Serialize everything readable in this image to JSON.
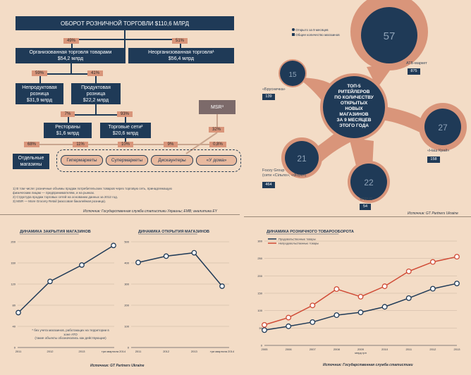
{
  "flow": {
    "top": "ОБОРОТ РОЗНИЧНОЙ ТОРГОВЛИ $110,6 МЛРД",
    "p_food": "49%",
    "p_nonfood": "51%",
    "food": [
      "Организованная торговля товарами",
      "$54,2 млрд"
    ],
    "nonfood": [
      "Неорганизованная торговля¹",
      "$56,4 млрд"
    ],
    "p_nonprod": "59%",
    "p_prod": "41%",
    "nonprod": [
      "Непродуктовая",
      "розница",
      "$31,9 млрд"
    ],
    "prod": [
      "Продуктовая",
      "розница",
      "$22,2 млрд"
    ],
    "msr": "MSR³",
    "p_rest": "7%",
    "p_chain": "93%",
    "p_msr": "32%",
    "rest": [
      "Рестораны",
      "$1,6 млрд"
    ],
    "chain": [
      "Торговые сети²",
      "$20,6 млрд"
    ],
    "p_sep": "68%",
    "p_hyper": "11%",
    "p_super": "10%",
    "p_disc": "9%",
    "p_home": "0,8%",
    "sep_shops": [
      "Отдельные",
      "магазины"
    ],
    "hyper": "Гипермаркеты",
    "super": "Супермаркеты",
    "disc": "Дискаунтеры",
    "home": "«У дома»",
    "notes": [
      "1) В том числе: розничные объемы продаж потребительских товаров через торговую сеть, принадлежащую",
      "физическим лицам — предпринимателям, и на рынках.",
      "2) Структура продаж торговых сетей на основании данных за 2012 год.",
      "3) MSR — More Grocery Retail (массовая бакалейная розница)."
    ],
    "source": "Источник: Государственная служба статистики Украины; EMB; аналитика EY"
  },
  "bubbles": {
    "legend_open": "Открыто за 9 месяцев",
    "legend_total": "Общее количество магазинов",
    "center": [
      "ТОП-5",
      "РИТЕЙЛЕРОВ",
      "ПО КОЛИЧЕСТВУ",
      "ОТКРЫТЫХ",
      "НОВЫХ",
      "МАГАЗИНОВ",
      "ЗА 9 МЕСЯЦЕВ",
      "ЭТОГО ГОДА"
    ],
    "atb": {
      "open": "57",
      "label": "АТБ-маркет",
      "total": "875"
    },
    "brus": {
      "open": "15",
      "label": "«Брусничка»",
      "total": "139"
    },
    "nash": {
      "open": "27",
      "label": "«Наш Край»",
      "total": "158"
    },
    "fozzy": {
      "open": "21",
      "label": [
        "Fozzy Group",
        "(сети «Сільпо», «Фора»)"
      ],
      "total": "464"
    },
    "varus": {
      "open": "22",
      "label": "VARUS",
      "total": "54"
    },
    "source": "Источник: GT Partners Ukraine"
  },
  "charts_text": {
    "note_close": [
      "* без учета магазинов, работающих на территории в зоне АТО",
      "(такие объекты обозначались как действующие)"
    ],
    "source_left": "Источник: GT Partners Ukraine",
    "source_right": "Источник: Государственная служба статистики"
  },
  "chart_data": [
    {
      "type": "line",
      "title": "ДИНАМИКА ЗАКРЫТИЯ МАГАЗИНОВ",
      "categories": [
        "2011",
        "2012",
        "2013",
        "три квартала 2014"
      ],
      "values": [
        66,
        125,
        156,
        193
      ],
      "ylim": [
        0,
        200
      ],
      "yticks": [
        0,
        40,
        80,
        120,
        160,
        200
      ]
    },
    {
      "type": "line",
      "title": "ДИНАМИКА ОТКРЫТИЯ МАГАЗИНОВ",
      "categories": [
        "2011",
        "2012",
        "2013",
        "три квартала 2014"
      ],
      "values": [
        402,
        432,
        448,
        290
      ],
      "ylim": [
        0,
        500
      ],
      "yticks": [
        0,
        100,
        200,
        300,
        400,
        500
      ]
    },
    {
      "type": "line",
      "title": "ДИНАМИКА РОЗНИЧНОГО ТОВАРООБОРОТА",
      "categories": [
        "2005",
        "2006",
        "2007",
        "2008",
        "2009",
        "2010",
        "2011",
        "2012",
        "2013"
      ],
      "ylabel": "млрд грн",
      "ylim": [
        0,
        300
      ],
      "yticks": [
        0,
        50,
        100,
        150,
        200,
        250,
        300
      ],
      "series": [
        {
          "name": "Продовольственные товары",
          "color": "#1f3a57",
          "values": [
            44,
            55,
            67,
            87,
            95,
            111,
            136,
            163,
            178
          ]
        },
        {
          "name": "Непродовольственные товары",
          "color": "#d04a35",
          "values": [
            59,
            80,
            115,
            162,
            140,
            170,
            213,
            240,
            255
          ]
        }
      ]
    }
  ]
}
